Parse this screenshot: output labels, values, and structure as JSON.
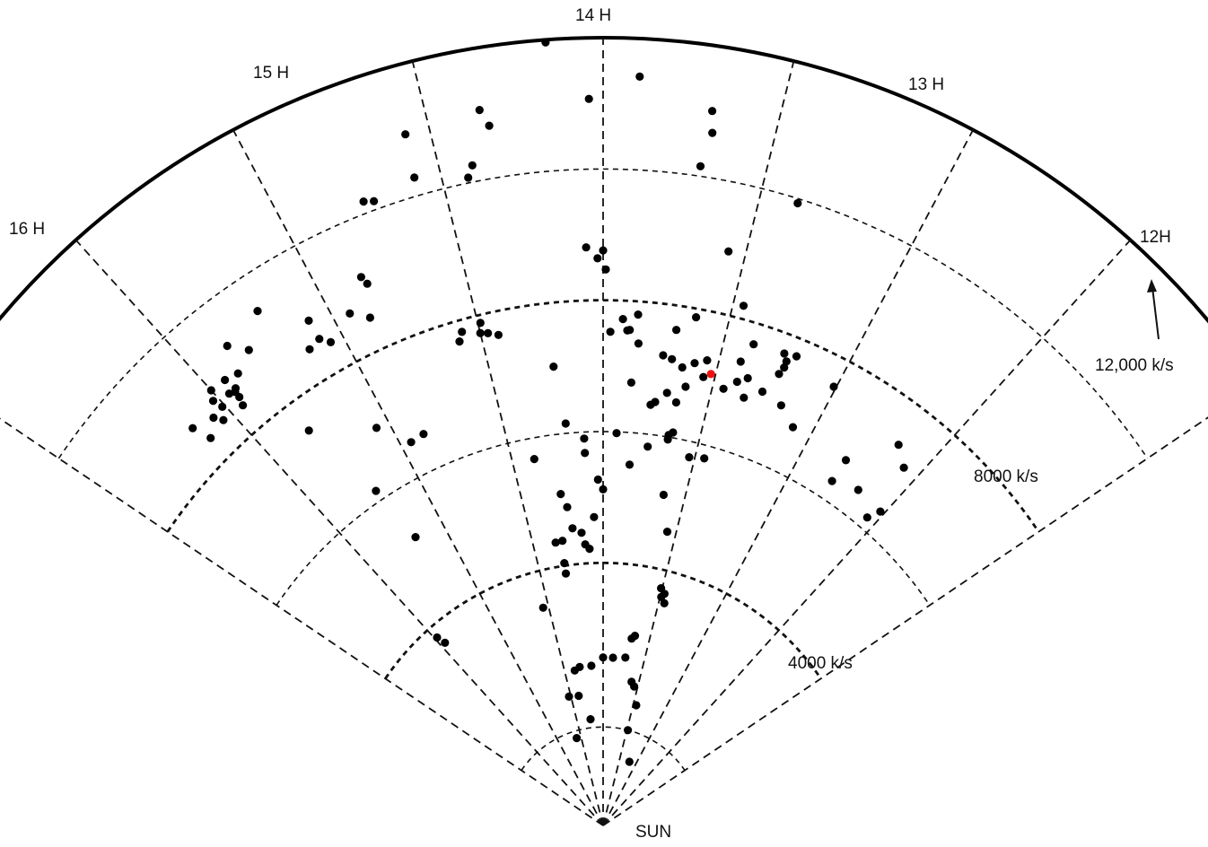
{
  "chart_data": {
    "type": "scatter",
    "projection": "polar wedge (right ascension vs. recession velocity)",
    "labels": {
      "ra": [
        "16 H",
        "15 H",
        "14 H",
        "13 H",
        "12H"
      ],
      "velocity": [
        "4000 k/s",
        "8000 k/s",
        "12,000 k/s"
      ],
      "origin": "SUN"
    },
    "ra_range_hours": [
      12,
      16
    ],
    "velocity_range": [
      0,
      12000
    ],
    "velocity_units": "k/s",
    "rings_km_s": [
      1500,
      4000,
      6000,
      8000,
      10000,
      12000
    ],
    "spokes_hours": [
      12.5,
      13,
      13.5,
      14,
      14.5,
      15,
      15.5
    ],
    "colors": {
      "galaxy": "#000000",
      "highlight": "#ee1111",
      "lines": "#111111"
    },
    "points": [
      [
        14.15,
        11960
      ],
      [
        13.9,
        11420
      ],
      [
        14.04,
        11070
      ],
      [
        13.69,
        11010
      ],
      [
        13.68,
        10680
      ],
      [
        13.7,
        10150
      ],
      [
        13.38,
        9930
      ],
      [
        13.56,
        8950
      ],
      [
        14.35,
        11060
      ],
      [
        14.57,
        10950
      ],
      [
        14.33,
        10800
      ],
      [
        14.58,
        10280
      ],
      [
        14.4,
        10250
      ],
      [
        14.42,
        10080
      ],
      [
        14.75,
        10180
      ],
      [
        14.72,
        10130
      ],
      [
        13.63,
        7870
      ],
      [
        13.7,
        7630
      ],
      [
        13.74,
        7220
      ],
      [
        13.86,
        7800
      ],
      [
        13.92,
        7720
      ],
      [
        13.97,
        7520
      ],
      [
        13.9,
        7550
      ],
      [
        13.85,
        7360
      ],
      [
        13.46,
        8200
      ],
      [
        13.25,
        7700
      ],
      [
        13.38,
        7680
      ],
      [
        13.2,
        7730
      ],
      [
        13.23,
        7600
      ],
      [
        13.23,
        7500
      ],
      [
        13.24,
        7380
      ],
      [
        13.41,
        7370
      ],
      [
        13.55,
        7260
      ],
      [
        13.6,
        7180
      ],
      [
        13.7,
        7180
      ],
      [
        13.65,
        7080
      ],
      [
        13.55,
        7000
      ],
      [
        13.28,
        7040
      ],
      [
        13.36,
        7160
      ],
      [
        13.4,
        7060
      ],
      [
        13.45,
        6900
      ],
      [
        13.35,
        6860
      ],
      [
        13.18,
        6950
      ],
      [
        13.09,
        6720
      ],
      [
        13.01,
        7550
      ],
      [
        12.65,
        7340
      ],
      [
        12.8,
        6680
      ],
      [
        12.8,
        6300
      ],
      [
        12.57,
        7120
      ],
      [
        12.67,
        6420
      ],
      [
        12.52,
        6380
      ],
      [
        12.55,
        6180
      ],
      [
        13.62,
        6800
      ],
      [
        13.7,
        6660
      ],
      [
        13.75,
        6500
      ],
      [
        13.77,
        6450
      ],
      [
        13.87,
        6760
      ],
      [
        13.65,
        6540
      ],
      [
        13.64,
        6080
      ],
      [
        13.66,
        6030
      ],
      [
        13.53,
        5760
      ],
      [
        13.45,
        5800
      ],
      [
        13.63,
        5120
      ],
      [
        13.56,
        4580
      ],
      [
        13.51,
        3720
      ],
      [
        13.47,
        3650
      ],
      [
        13.49,
        3590
      ],
      [
        13.45,
        3510
      ],
      [
        14.0,
        8760
      ],
      [
        14.02,
        8640
      ],
      [
        13.99,
        8470
      ],
      [
        14.06,
        8810
      ],
      [
        13.89,
        7560
      ],
      [
        14.49,
        7880
      ],
      [
        14.43,
        7640
      ],
      [
        14.47,
        7700
      ],
      [
        14.57,
        7820
      ],
      [
        14.59,
        7690
      ],
      [
        14.22,
        7030
      ],
      [
        14.19,
        6150
      ],
      [
        14.38,
        5680
      ],
      [
        14.26,
        5090
      ],
      [
        14.23,
        4880
      ],
      [
        14.55,
        3440
      ],
      [
        14.0,
        2560
      ],
      [
        14.1,
        5900
      ],
      [
        14.06,
        4700
      ],
      [
        14.15,
        4470
      ],
      [
        14.13,
        4290
      ],
      [
        14.1,
        4220
      ],
      [
        14.21,
        4550
      ],
      [
        14.29,
        4380
      ],
      [
        14.34,
        4370
      ],
      [
        14.3,
        4040
      ],
      [
        14.3,
        3880
      ],
      [
        14.0,
        5120
      ],
      [
        14.1,
        5680
      ],
      [
        13.85,
        5510
      ],
      [
        14.03,
        5270
      ],
      [
        13.76,
        5810
      ],
      [
        13.93,
        5980
      ],
      [
        13.66,
        5960
      ],
      [
        14.37,
        2400
      ],
      [
        14.3,
        2440
      ],
      [
        14.15,
        2440
      ],
      [
        13.66,
        2930
      ],
      [
        13.69,
        2880
      ],
      [
        13.73,
        2580
      ],
      [
        13.88,
        2560
      ],
      [
        14.38,
        2010
      ],
      [
        14.53,
        2030
      ],
      [
        14.6,
        1390
      ],
      [
        14.24,
        1630
      ],
      [
        13.48,
        1500
      ],
      [
        13.2,
        1050
      ],
      [
        13.45,
        1900
      ],
      [
        13.55,
        2170
      ],
      [
        13.6,
        2230
      ],
      [
        15.36,
        9280
      ],
      [
        15.21,
        9440
      ],
      [
        15.31,
        9030
      ],
      [
        15.08,
        8900
      ],
      [
        15.44,
        8900
      ],
      [
        15.43,
        8700
      ],
      [
        15.39,
        8850
      ],
      [
        15.46,
        8700
      ],
      [
        15.52,
        8780
      ],
      [
        15.5,
        8920
      ],
      [
        15.51,
        8620
      ],
      [
        15.45,
        8430
      ],
      [
        15.56,
        8590
      ],
      [
        15.54,
        8460
      ],
      [
        15.44,
        8660
      ],
      [
        15.44,
        8560
      ],
      [
        15.64,
        8700
      ],
      [
        15.62,
        8400
      ],
      [
        15.08,
        8580
      ],
      [
        15.05,
        8450
      ],
      [
        15.13,
        8520
      ],
      [
        14.94,
        8700
      ],
      [
        14.88,
        8510
      ],
      [
        15.31,
        7500
      ],
      [
        14.95,
        6530
      ],
      [
        14.88,
        6560
      ],
      [
        15.22,
        6160
      ],
      [
        15.18,
        5240
      ],
      [
        14.5,
        7730
      ],
      [
        14.84,
        9000
      ],
      [
        14.85,
        9130
      ],
      [
        15.06,
        6970
      ],
      [
        15.48,
        3820
      ],
      [
        15.46,
        3680
      ]
    ],
    "highlight_point": [
      13.52,
      7070
    ]
  }
}
